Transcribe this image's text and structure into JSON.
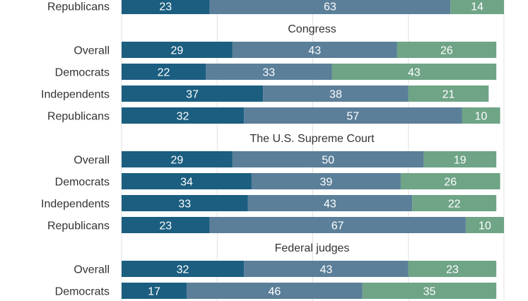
{
  "chart_data": {
    "type": "bar",
    "orientation": "horizontal",
    "stacked": true,
    "xlim": [
      0,
      100
    ],
    "grid": true,
    "colors": [
      "#1b5e80",
      "#5b7f99",
      "#6fa487"
    ],
    "groups": [
      {
        "title": "",
        "rows": [
          {
            "label": "Republicans",
            "values": [
              23,
              63,
              14
            ]
          }
        ]
      },
      {
        "title": "Congress",
        "rows": [
          {
            "label": "Overall",
            "values": [
              29,
              43,
              26
            ]
          },
          {
            "label": "Democrats",
            "values": [
              22,
              33,
              43
            ]
          },
          {
            "label": "Independents",
            "values": [
              37,
              38,
              21
            ]
          },
          {
            "label": "Republicans",
            "values": [
              32,
              57,
              10
            ]
          }
        ]
      },
      {
        "title": "The U.S. Supreme Court",
        "rows": [
          {
            "label": "Overall",
            "values": [
              29,
              50,
              19
            ]
          },
          {
            "label": "Democrats",
            "values": [
              34,
              39,
              26
            ]
          },
          {
            "label": "Independents",
            "values": [
              33,
              43,
              22
            ]
          },
          {
            "label": "Republicans",
            "values": [
              23,
              67,
              10
            ]
          }
        ]
      },
      {
        "title": "Federal judges",
        "rows": [
          {
            "label": "Overall",
            "values": [
              32,
              43,
              23
            ]
          },
          {
            "label": "Democrats",
            "values": [
              17,
              46,
              35
            ]
          }
        ]
      }
    ]
  }
}
